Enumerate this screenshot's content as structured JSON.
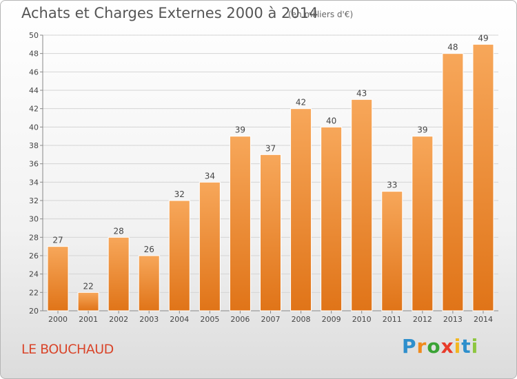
{
  "title": "Achats et Charges Externes 2000 à 2014",
  "unit": "(en milliers d'€)",
  "commune": "LE BOUCHAUD",
  "logo": {
    "letters": [
      "P",
      "r",
      "o",
      "x",
      "i",
      "t",
      "i"
    ],
    "colors": [
      "#2e8fcc",
      "#f08a1c",
      "#3aa335",
      "#e83b2a",
      "#f2b620",
      "#2e8fcc",
      "#8dc63f"
    ]
  },
  "colors": {
    "bar_top": "#f7a75a",
    "bar_bottom": "#e07418",
    "accent_title": "#d9452a"
  },
  "chart_data": {
    "type": "bar",
    "categories": [
      "2000",
      "2001",
      "2002",
      "2003",
      "2004",
      "2005",
      "2006",
      "2007",
      "2008",
      "2009",
      "2010",
      "2011",
      "2012",
      "2013",
      "2014"
    ],
    "values": [
      27,
      22,
      28,
      26,
      32,
      34,
      39,
      37,
      42,
      40,
      43,
      33,
      39,
      48,
      49
    ],
    "title": "Achats et Charges Externes 2000 à 2014",
    "xlabel": "",
    "ylabel": "",
    "ylim": [
      20,
      50
    ],
    "yticks": [
      20,
      22,
      24,
      26,
      28,
      30,
      32,
      34,
      36,
      38,
      40,
      42,
      44,
      46,
      48,
      50
    ],
    "grid": true
  }
}
